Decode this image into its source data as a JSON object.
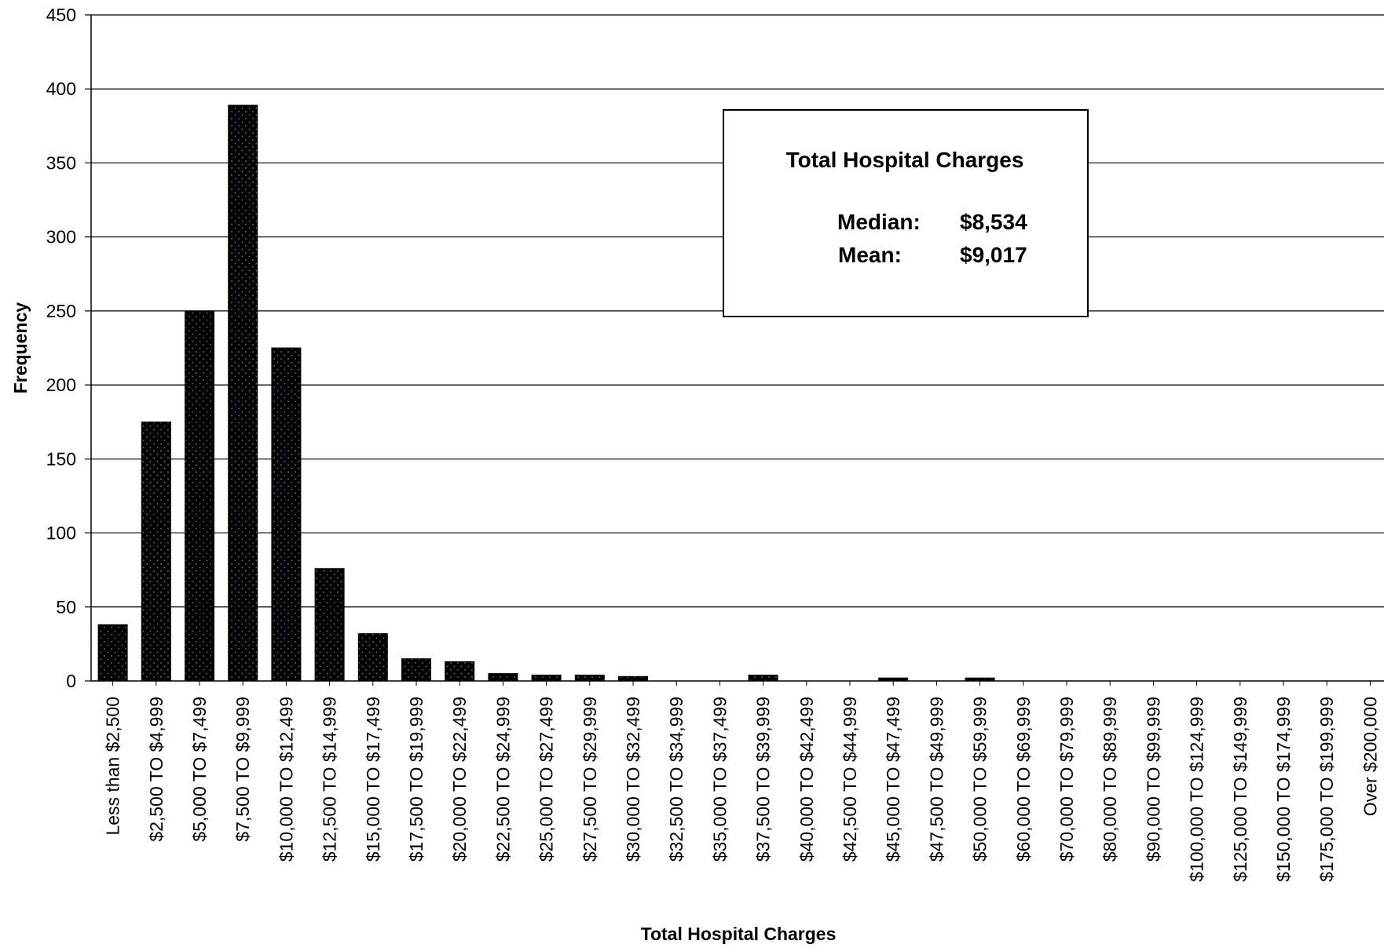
{
  "chart_data": {
    "type": "bar",
    "categories": [
      "Less than $2,500",
      "$2,500 TO $4,999",
      "$5,000 TO $7,499",
      "$7,500 TO $9,999",
      "$10,000 TO $12,499",
      "$12,500 TO $14,999",
      "$15,000 TO $17,499",
      "$17,500 TO $19,999",
      "$20,000 TO $22,499",
      "$22,500 TO $24,999",
      "$25,000 TO $27,499",
      "$27,500 TO $29,999",
      "$30,000 TO $32,499",
      "$32,500 TO $34,999",
      "$35,000 TO $37,499",
      "$37,500 TO $39,999",
      "$40,000 TO $42,499",
      "$42,500 TO $44,999",
      "$45,000 TO $47,499",
      "$47,500 TO $49,999",
      "$50,000 TO $59,999",
      "$60,000 TO $69,999",
      "$70,000 TO $79,999",
      "$80,000 TO $89,999",
      "$90,000 TO $99,999",
      "$100,000 TO $124,999",
      "$125,000 TO $149,999",
      "$150,000 TO $174,999",
      "$175,000 TO $199,999",
      "Over $200,000"
    ],
    "values": [
      38,
      175,
      250,
      389,
      225,
      76,
      32,
      15,
      13,
      5,
      4,
      4,
      3,
      0,
      0,
      4,
      0,
      0,
      2,
      0,
      2,
      0,
      0,
      0,
      0,
      0,
      0,
      0,
      0,
      0
    ],
    "xlabel": "Total Hospital Charges",
    "ylabel": "Frequency",
    "ylim": [
      0,
      450
    ],
    "yticks": [
      0,
      50,
      100,
      150,
      200,
      250,
      300,
      350,
      400,
      450
    ],
    "grid": true,
    "legend": "none",
    "bar_color": "#000000",
    "annotation": {
      "title": "Total Hospital Charges",
      "rows": [
        {
          "label": "Median:",
          "value": "$8,534"
        },
        {
          "label": "Mean:",
          "value": "$9,017"
        }
      ]
    }
  }
}
